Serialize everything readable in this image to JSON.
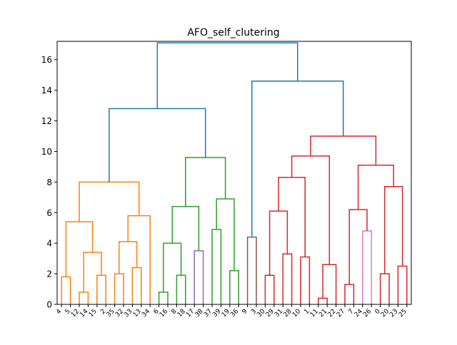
{
  "chart_data": {
    "type": "dendrogram",
    "title": "AFO_self_clutering",
    "xlabel": "",
    "ylabel": "",
    "ylim": [
      0,
      17.2
    ],
    "yticks": [
      0,
      2,
      4,
      6,
      8,
      10,
      12,
      14,
      16
    ],
    "leaf_order": [
      "4",
      "5",
      "12",
      "14",
      "15",
      "2",
      "35",
      "32",
      "33",
      "13",
      "34",
      "6",
      "16",
      "8",
      "18",
      "17",
      "38",
      "37",
      "39",
      "19",
      "36",
      "9",
      "3",
      "30",
      "29",
      "31",
      "28",
      "10",
      "1",
      "11",
      "21",
      "22",
      "27",
      "7",
      "24",
      "26",
      "0",
      "20",
      "23",
      "25"
    ],
    "cluster_colors": {
      "orange": "#ff7f0e",
      "green": "#2ca02c",
      "red": "#d62728",
      "purple": "#9467bd",
      "brown": "#8c564b",
      "pink": "#e377c2",
      "above_threshold": "#1f77b4"
    },
    "merges": [
      {
        "a": "L:4",
        "b": "L:5",
        "h": 1.8,
        "color": "orange"
      },
      {
        "a": "L:12",
        "b": "L:14",
        "h": 0.8,
        "color": "orange"
      },
      {
        "a": "L:15",
        "b": "L:2",
        "h": 1.9,
        "color": "orange"
      },
      {
        "a": "M:1",
        "b": "M:2",
        "h": 3.4,
        "color": "orange"
      },
      {
        "a": "M:0",
        "b": "M:3",
        "h": 5.4,
        "color": "orange"
      },
      {
        "a": "L:35",
        "b": "L:32",
        "h": 2.0,
        "color": "orange"
      },
      {
        "a": "L:33",
        "b": "L:13",
        "h": 2.4,
        "color": "orange"
      },
      {
        "a": "M:5",
        "b": "M:6",
        "h": 4.1,
        "color": "orange"
      },
      {
        "a": "M:7",
        "b": "L:34",
        "h": 5.8,
        "color": "orange"
      },
      {
        "a": "M:4",
        "b": "M:8",
        "h": 8.0,
        "color": "orange"
      },
      {
        "a": "L:6",
        "b": "L:16",
        "h": 0.8,
        "color": "green"
      },
      {
        "a": "L:8",
        "b": "L:18",
        "h": 1.9,
        "color": "green"
      },
      {
        "a": "M:10",
        "b": "M:11",
        "h": 4.0,
        "color": "green"
      },
      {
        "a": "L:17",
        "b": "L:38",
        "h": 3.5,
        "color": "purple"
      },
      {
        "a": "M:12",
        "b": "M:13",
        "h": 6.4,
        "color": "green"
      },
      {
        "a": "L:37",
        "b": "L:39",
        "h": 4.9,
        "color": "green"
      },
      {
        "a": "L:19",
        "b": "L:36",
        "h": 2.2,
        "color": "green"
      },
      {
        "a": "M:15",
        "b": "M:16",
        "h": 6.9,
        "color": "green"
      },
      {
        "a": "M:14",
        "b": "M:17",
        "h": 9.6,
        "color": "green"
      },
      {
        "a": "L:9",
        "b": "L:3",
        "h": 4.4,
        "color": "brown"
      },
      {
        "a": "L:30",
        "b": "L:29",
        "h": 1.9,
        "color": "red"
      },
      {
        "a": "L:31",
        "b": "L:28",
        "h": 3.3,
        "color": "red"
      },
      {
        "a": "M:20",
        "b": "M:21",
        "h": 6.1,
        "color": "red"
      },
      {
        "a": "L:10",
        "b": "L:1",
        "h": 3.1,
        "color": "red"
      },
      {
        "a": "M:22",
        "b": "M:23",
        "h": 8.3,
        "color": "red"
      },
      {
        "a": "L:11",
        "b": "L:21",
        "h": 0.4,
        "color": "red"
      },
      {
        "a": "M:25",
        "b": "L:22",
        "h": 2.6,
        "color": "red"
      },
      {
        "a": "M:24",
        "b": "M:26",
        "h": 9.7,
        "color": "red"
      },
      {
        "a": "L:27",
        "b": "L:7",
        "h": 1.3,
        "color": "red"
      },
      {
        "a": "L:24",
        "b": "L:26",
        "h": 4.8,
        "color": "pink"
      },
      {
        "a": "M:28",
        "b": "M:29",
        "h": 6.2,
        "color": "red"
      },
      {
        "a": "L:0",
        "b": "L:20",
        "h": 2.0,
        "color": "red"
      },
      {
        "a": "L:23",
        "b": "L:25",
        "h": 2.5,
        "color": "red"
      },
      {
        "a": "M:31",
        "b": "M:32",
        "h": 7.7,
        "color": "red"
      },
      {
        "a": "M:30",
        "b": "M:33",
        "h": 9.1,
        "color": "red"
      },
      {
        "a": "M:27",
        "b": "M:34",
        "h": 11.0,
        "color": "red"
      },
      {
        "a": "M:9",
        "b": "M:18",
        "h": 12.8,
        "color": "above_threshold"
      },
      {
        "a": "M:19",
        "b": "M:35",
        "h": 14.6,
        "color": "above_threshold"
      },
      {
        "a": "M:36",
        "b": "M:37",
        "h": 17.1,
        "color": "above_threshold"
      }
    ]
  }
}
